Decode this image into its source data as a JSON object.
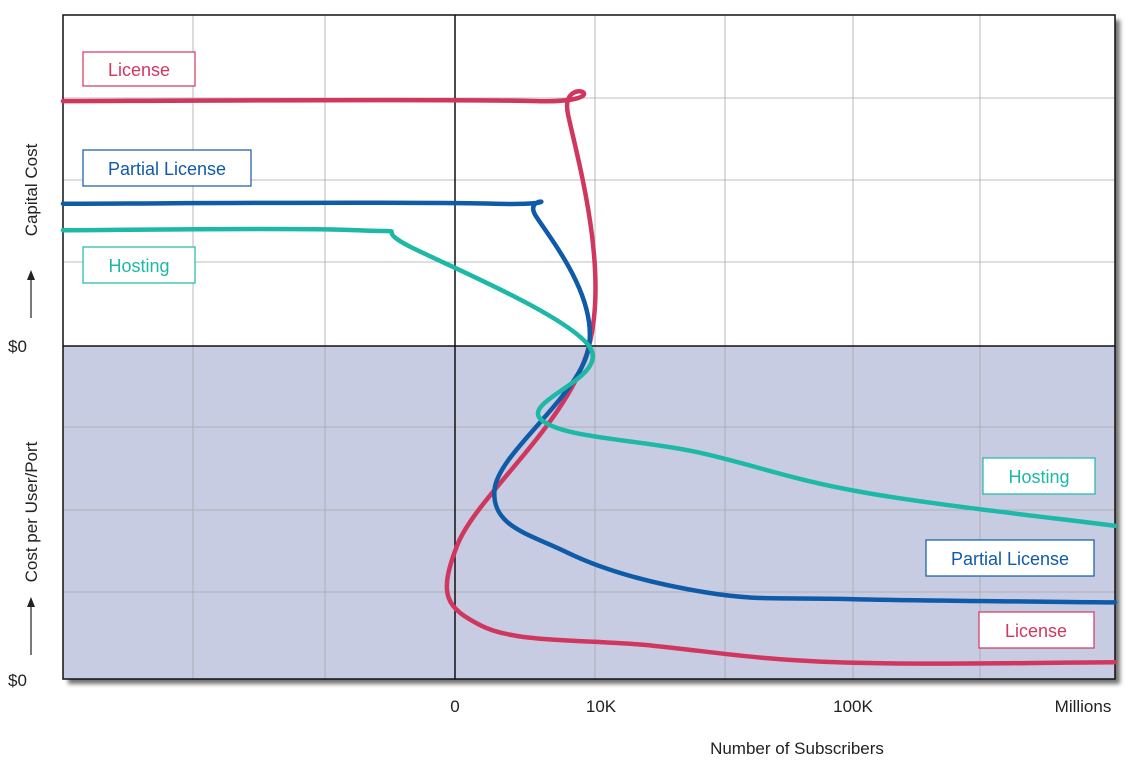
{
  "chart_data": {
    "type": "line",
    "title": "",
    "xlabel": "Number of Subscribers",
    "ylabel": "Cost per User/Port → Capital Cost",
    "ylabel_lower": "Cost per User/Port",
    "ylabel_upper": "Capital Cost",
    "x_ticks": [
      "0",
      "10K",
      "100K",
      "Millions"
    ],
    "y_ticks": [
      "$0",
      "$0"
    ],
    "grid": true,
    "shaded_region": "lower half (Cost per User/Port)",
    "colors": {
      "license": "#d0375f",
      "partial": "#0f5ba8",
      "hosting": "#1db8a6",
      "shade": "#c8cce2"
    },
    "labels": {
      "license_left": "License",
      "partial_left": "Partial License",
      "hosting_left": "Hosting",
      "hosting_right": "Hosting",
      "partial_right": "Partial License",
      "license_right": "License"
    },
    "series": [
      {
        "key": "license",
        "capital": [
          [
            0.0,
            0.74
          ],
          [
            0.45,
            0.74
          ],
          [
            0.48,
            0.7
          ],
          [
            0.5,
            0.0
          ]
        ],
        "per_user": [
          [
            0.0,
            0.0
          ],
          [
            0.003,
            0.6
          ],
          [
            0.04,
            0.84
          ],
          [
            0.3,
            0.9
          ],
          [
            0.58,
            0.95
          ],
          [
            1.0,
            0.95
          ]
        ]
      },
      {
        "key": "partial",
        "capital": [
          [
            0.0,
            0.43
          ],
          [
            0.41,
            0.43
          ],
          [
            0.45,
            0.39
          ],
          [
            0.5,
            0.0
          ]
        ],
        "per_user": [
          [
            0.0,
            0.0
          ],
          [
            0.06,
            0.43
          ],
          [
            0.17,
            0.62
          ],
          [
            0.38,
            0.74
          ],
          [
            0.6,
            0.76
          ],
          [
            1.0,
            0.77
          ]
        ]
      },
      {
        "key": "hosting",
        "capital": [
          [
            0.0,
            0.35
          ],
          [
            0.28,
            0.35
          ],
          [
            0.33,
            0.3
          ],
          [
            0.5,
            0.0
          ]
        ],
        "per_user": [
          [
            0.0,
            0.0
          ],
          [
            0.13,
            0.22
          ],
          [
            0.37,
            0.32
          ],
          [
            0.62,
            0.44
          ],
          [
            1.0,
            0.54
          ]
        ]
      }
    ]
  }
}
